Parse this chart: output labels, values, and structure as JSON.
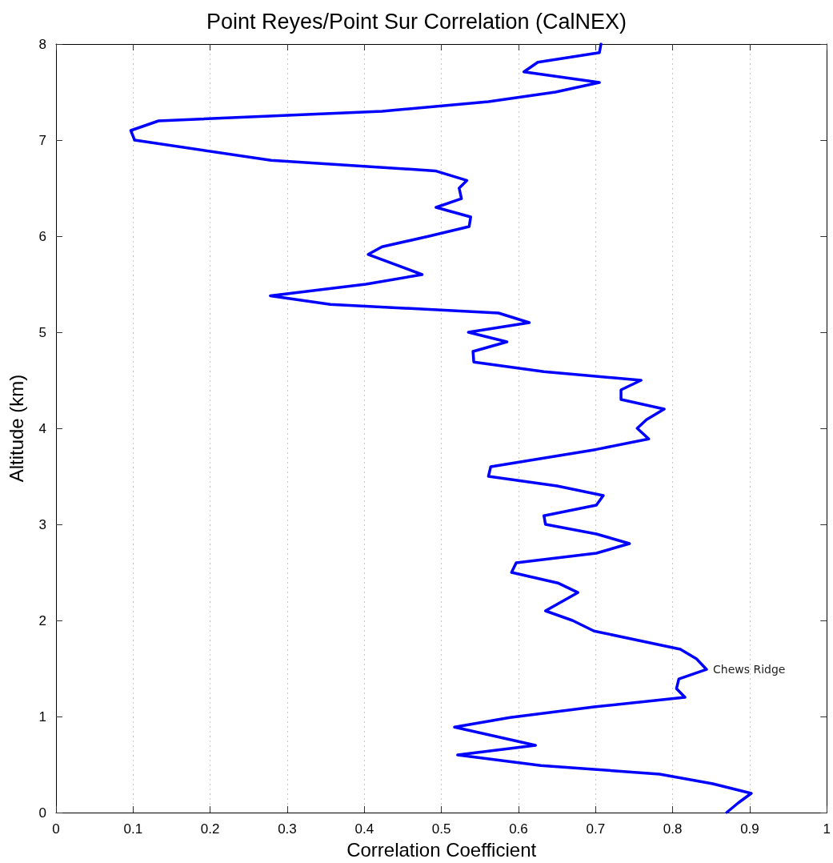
{
  "chart_data": {
    "type": "line",
    "title": "Point Reyes/Point Sur Correlation (CalNEX)",
    "xlabel": "Correlation Coefficient",
    "ylabel": "Altitude (km)",
    "series": [
      {
        "color": "#0000ff",
        "x": [
          0.87,
          0.885,
          0.902,
          0.852,
          0.783,
          0.698,
          0.629,
          0.521,
          0.622,
          0.517,
          0.589,
          0.698,
          0.816,
          0.805,
          0.808,
          0.844,
          0.831,
          0.81,
          0.698,
          0.67,
          0.635,
          0.677,
          0.651,
          0.591,
          0.597,
          0.701,
          0.744,
          0.701,
          0.635,
          0.633,
          0.701,
          0.71,
          0.65,
          0.561,
          0.564,
          0.701,
          0.769,
          0.754,
          0.766,
          0.789,
          0.733,
          0.733,
          0.759,
          0.633,
          0.542,
          0.541,
          0.585,
          0.535,
          0.614,
          0.574,
          0.356,
          0.278,
          0.402,
          0.475,
          0.405,
          0.423,
          0.484,
          0.536,
          0.538,
          0.493,
          0.526,
          0.523,
          0.533,
          0.492,
          0.279,
          0.102,
          0.097,
          0.133,
          0.423,
          0.561,
          0.648,
          0.705,
          0.607,
          0.625,
          0.705,
          0.707
        ],
        "values": [
          0.0,
          0.1,
          0.2,
          0.3,
          0.4,
          0.45,
          0.49,
          0.6,
          0.7,
          0.89,
          0.99,
          1.1,
          1.2,
          1.29,
          1.39,
          1.49,
          1.6,
          1.7,
          1.89,
          2.0,
          2.1,
          2.29,
          2.39,
          2.5,
          2.6,
          2.7,
          2.8,
          2.9,
          3.0,
          3.09,
          3.2,
          3.3,
          3.4,
          3.5,
          3.6,
          3.78,
          3.89,
          4.0,
          4.09,
          4.2,
          4.3,
          4.4,
          4.5,
          4.59,
          4.69,
          4.8,
          4.9,
          5.0,
          5.1,
          5.2,
          5.29,
          5.38,
          5.5,
          5.6,
          5.81,
          5.89,
          6.0,
          6.1,
          6.2,
          6.3,
          6.39,
          6.5,
          6.58,
          6.68,
          6.79,
          7.0,
          7.1,
          7.2,
          7.3,
          7.4,
          7.5,
          7.6,
          7.71,
          7.81,
          7.91,
          8.0
        ]
      }
    ],
    "xlim": [
      0,
      1
    ],
    "xticks": [
      0,
      0.1,
      0.2,
      0.3,
      0.4,
      0.5,
      0.6,
      0.7,
      0.8,
      0.9,
      1
    ],
    "ylim": [
      0,
      8
    ],
    "yticks": [
      0,
      1,
      2,
      3,
      4,
      5,
      6,
      7,
      8
    ],
    "grid": "x",
    "marker": "none",
    "line_style": "solid",
    "annotations": [
      {
        "text": "Chews Ridge",
        "x": 0.844,
        "y": 1.49
      }
    ]
  }
}
